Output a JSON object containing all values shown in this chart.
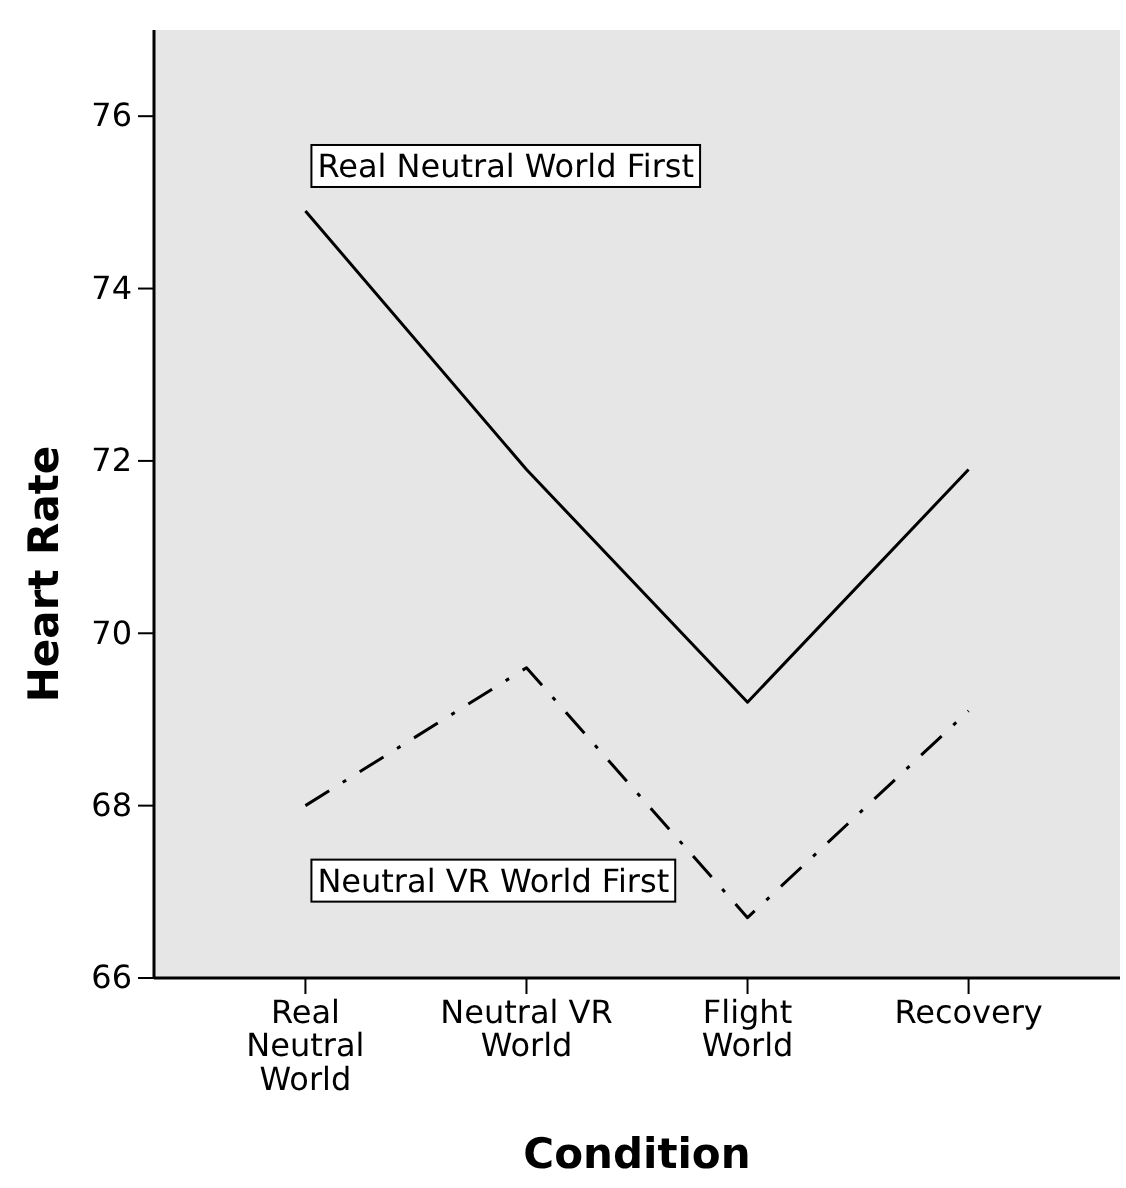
{
  "chart_data": {
    "type": "line",
    "xlabel": "Condition",
    "ylabel": "Heart Rate",
    "categories": [
      "Real Neutral World",
      "Neutral VR World",
      "Flight World",
      "Recovery"
    ],
    "series": [
      {
        "name": "Real Neutral World First",
        "color": "#000000",
        "line_style": "solid",
        "values": [
          74.9,
          71.9,
          69.2,
          71.9
        ]
      },
      {
        "name": "Neutral VR World First",
        "color": "#000000",
        "line_style": "dashed",
        "values": [
          68.0,
          69.6,
          66.7,
          69.1
        ]
      }
    ],
    "ylim": [
      66,
      77
    ],
    "yticks": [
      66,
      68,
      70,
      72,
      74,
      76
    ],
    "grid": false,
    "marker": "none"
  }
}
